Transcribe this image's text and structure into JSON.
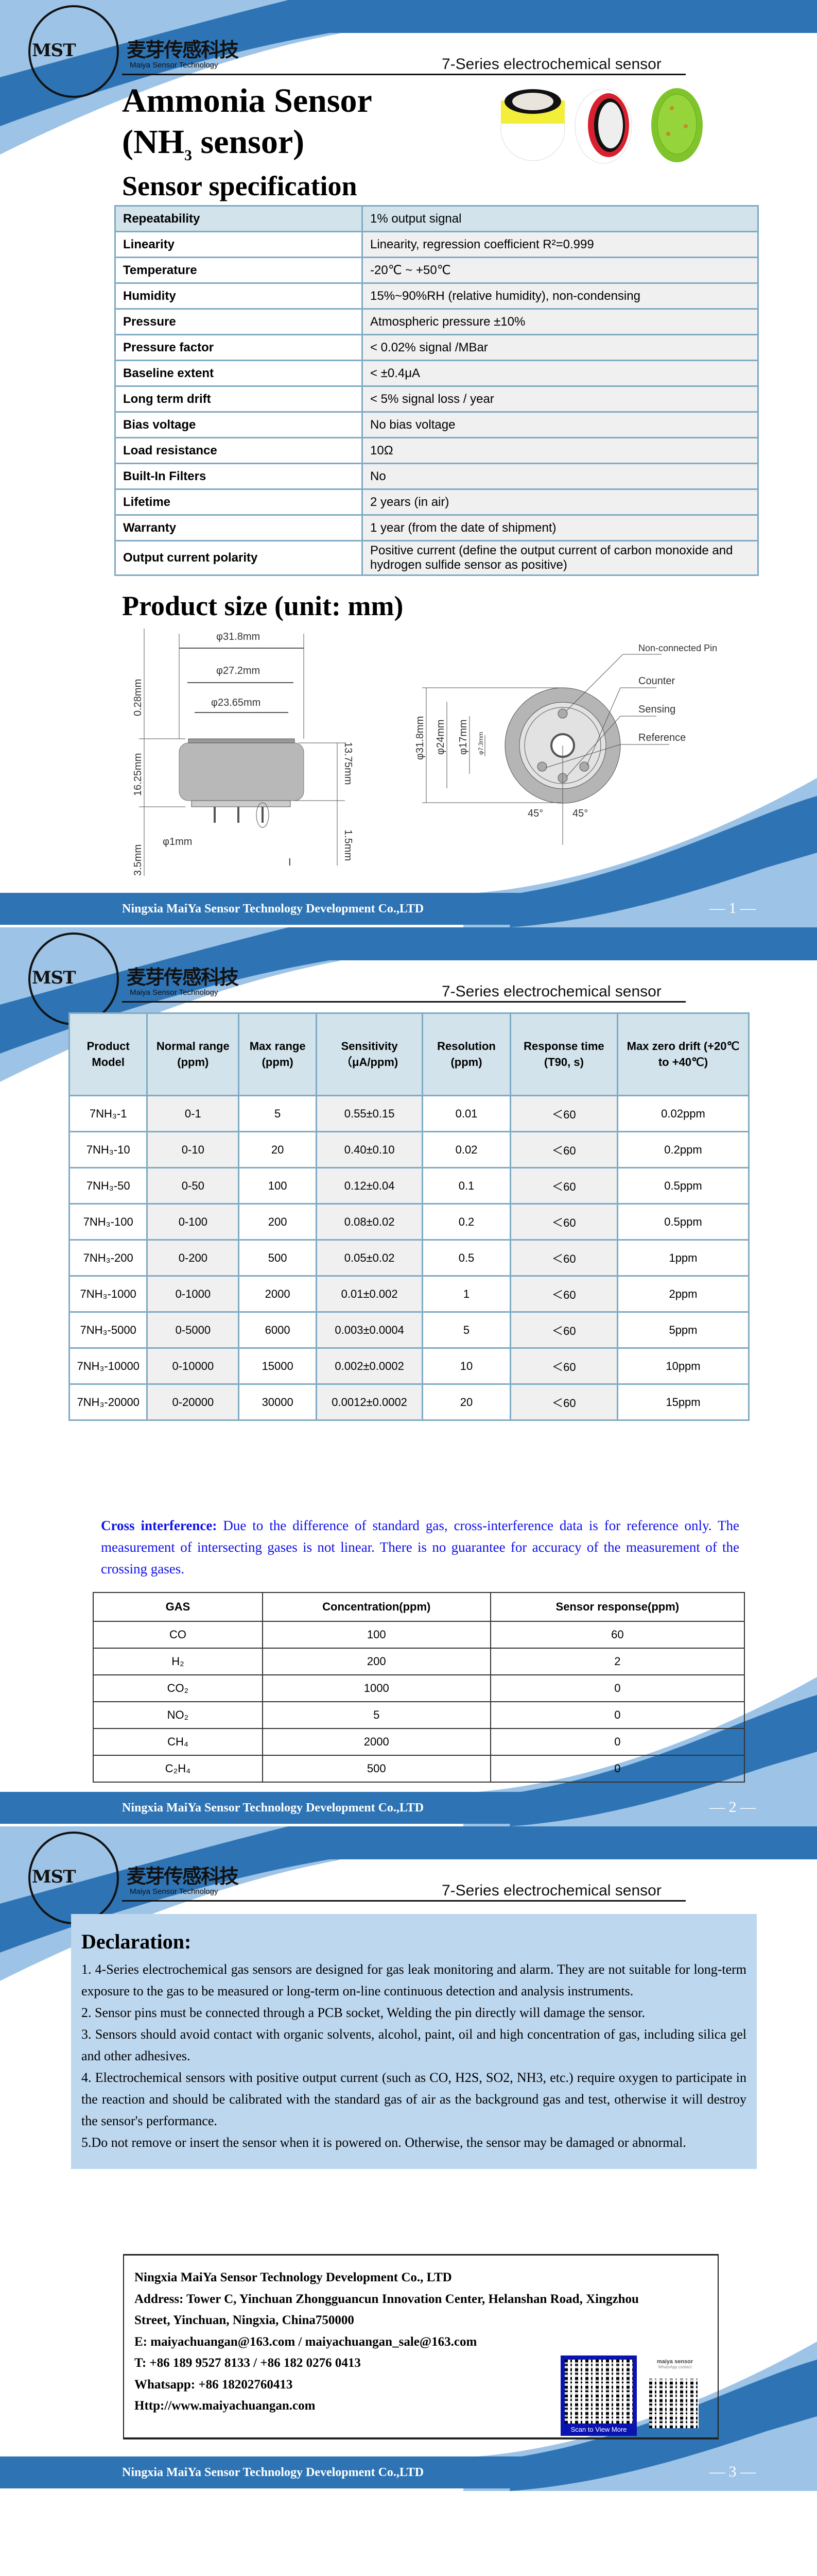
{
  "header": {
    "logo_mark": "MST",
    "logo_chinese": "麦芽传感科技",
    "logo_english": "Maiya Sensor Technology",
    "series": "7-Series electrochemical sensor"
  },
  "footer": {
    "company": "Ningxia MaiYa Sensor Technology Development Co.,LTD",
    "pages": [
      "— 1 —",
      "— 2 —",
      "— 3 —"
    ]
  },
  "colors": {
    "dark_blue": "#2e74b5",
    "light_blue": "#9dc3e6",
    "table_header": "#d2e3eb",
    "table_border": "#7fabc4",
    "cross_text": "#1010ee",
    "declaration_bg": "#bdd7ee"
  },
  "page1": {
    "title": "Ammonia Sensor",
    "subtitle_prefix": "(NH",
    "subtitle_sub": "3",
    "subtitle_suffix": " sensor)",
    "spec_heading": "Sensor specification",
    "specs": [
      {
        "label": "Repeatability",
        "value": "1% output signal"
      },
      {
        "label": "Linearity",
        "value": "Linearity, regression coefficient R²=0.999"
      },
      {
        "label": "Temperature",
        "value": "-20℃  ~ +50℃"
      },
      {
        "label": "Humidity",
        "value": "15%~90%RH (relative humidity), non-condensing"
      },
      {
        "label": "Pressure",
        "value": "Atmospheric pressure  ±10%"
      },
      {
        "label": "Pressure factor",
        "value": "< 0.02% signal /MBar"
      },
      {
        "label": "Baseline extent",
        "value": " < ±0.4μA"
      },
      {
        "label": "Long term drift",
        "value": "< 5% signal loss / year"
      },
      {
        "label": "Bias voltage",
        "value": "No bias voltage"
      },
      {
        "label": "Load resistance",
        "value": "10Ω"
      },
      {
        "label": "Built-In Filters",
        "value": "No"
      },
      {
        "label": "Lifetime",
        "value": "2 years (in air)"
      },
      {
        "label": "Warranty",
        "value": "1 year (from the date of shipment)"
      },
      {
        "label": "Output current polarity",
        "value": "Positive current (define the output current of carbon monoxide and hydrogen sulfide sensor as positive)"
      }
    ],
    "size_heading": "Product size (unit: mm)",
    "side_view": {
      "d_outer": "φ31.8mm",
      "d_mid": "φ27.2mm",
      "d_inner": "φ23.65mm",
      "h_top": "0.28mm",
      "h_body": "16.25mm",
      "h_pin": "3.5mm",
      "h_can": "13.75mm",
      "h_base": "1.5mm",
      "pin_d": "φ1mm",
      "detail": "I"
    },
    "top_view": {
      "d1": "φ31.8mm",
      "d2": "φ24mm",
      "d3": "φ17mm",
      "d4": "φ7.3mm",
      "angle_left": "45°",
      "angle_right": "45°",
      "labels": [
        "Non-connected Pin",
        "Counter",
        "Sensing",
        "Reference"
      ]
    }
  },
  "page2": {
    "model_headers": [
      "Product Model",
      "Normal range (ppm)",
      "Max range (ppm)",
      "Sensitivity（μA/ppm)",
      "Resolution (ppm)",
      "Response time (T90, s)",
      "Max zero drift (+20℃ to +40℃)"
    ],
    "models": [
      [
        "7NH₃-1",
        "0-1",
        "5",
        "0.55±0.15",
        "0.01",
        "＜60",
        "0.02ppm"
      ],
      [
        "7NH₃-10",
        "0-10",
        "20",
        "0.40±0.10",
        "0.02",
        "＜60",
        "0.2ppm"
      ],
      [
        "7NH₃-50",
        "0-50",
        "100",
        "0.12±0.04",
        "0.1",
        "＜60",
        "0.5ppm"
      ],
      [
        "7NH₃-100",
        "0-100",
        "200",
        "0.08±0.02",
        "0.2",
        "＜60",
        "0.5ppm"
      ],
      [
        "7NH₃-200",
        "0-200",
        "500",
        "0.05±0.02",
        "0.5",
        "＜60",
        "1ppm"
      ],
      [
        "7NH₃-1000",
        "0-1000",
        "2000",
        "0.01±0.002",
        "1",
        "＜60",
        "2ppm"
      ],
      [
        "7NH₃-5000",
        "0-5000",
        "6000",
        "0.003±0.0004",
        "5",
        "＜60",
        "5ppm"
      ],
      [
        "7NH₃-10000",
        "0-10000",
        "15000",
        "0.002±0.0002",
        "10",
        "＜60",
        "10ppm"
      ],
      [
        "7NH₃-20000",
        "0-20000",
        "30000",
        "0.0012±0.0002",
        "20",
        "＜60",
        "15ppm"
      ]
    ],
    "cross_label": "Cross interference:",
    "cross_text": " Due to the difference of standard gas, cross-interference data is for reference only. The measurement of intersecting gases is not linear. There is no guarantee for accuracy of the measurement of the crossing gases.",
    "gas_headers": [
      "GAS",
      "Concentration(ppm)",
      "Sensor response(ppm)"
    ],
    "gases": [
      [
        "CO",
        "100",
        "60"
      ],
      [
        "H₂",
        "200",
        "2"
      ],
      [
        "CO₂",
        "1000",
        "0"
      ],
      [
        "NO₂",
        "5",
        "0"
      ],
      [
        "CH₄",
        "2000",
        "0"
      ],
      [
        "C₂H₄",
        "500",
        "0"
      ]
    ]
  },
  "page3": {
    "declaration_title": "Declaration:",
    "declarations": [
      "1. 4-Series electrochemical gas sensors are designed for gas leak monitoring and alarm. They are not suitable for long-term exposure to the gas to be measured or long-term on-line continuous detection and analysis instruments.",
      "2.  Sensor pins must be connected through a PCB socket, Welding the pin directly will damage the sensor.",
      "3.  Sensors should avoid contact with organic solvents, alcohol, paint, oil and high concentration of gas, including silica gel and other adhesives.",
      "4.  Electrochemical sensors with positive output current (such as CO, H2S, SO2, NH3, etc.) require oxygen to participate in the reaction and should be calibrated with the standard gas of air as the background gas and test, otherwise it will destroy the sensor's performance.",
      "5.Do not remove or insert the sensor when it is powered on. Otherwise, the sensor may be damaged or abnormal."
    ],
    "contact": {
      "company": "Ningxia MaiYa Sensor Technology Development Co., LTD",
      "address1": "Address: Tower C, Yinchuan Zhongguancun Innovation Center, Helanshan Road, Xingzhou",
      "address2": "Street, Yinchuan, Ningxia, China750000",
      "email": "E: maiyachuangan@163.com / maiyachuangan_sale@163.com",
      "phone": "T: +86 189 9527 8133 / +86 182 0276 0413",
      "whatsapp": "Whatsapp: +86 18202760413",
      "web": "Http://www.maiyachuangan.com",
      "qr1_caption": "Scan to View More",
      "qr2_title": "maiya sensor",
      "qr2_subtitle": "WhatsApp contact"
    }
  }
}
